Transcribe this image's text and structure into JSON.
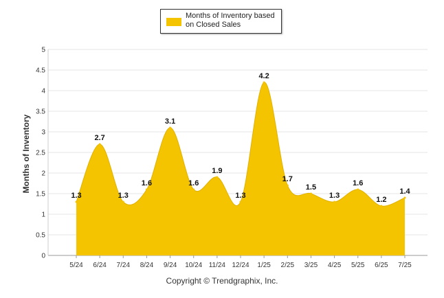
{
  "chart_data": {
    "type": "area",
    "categories": [
      "5/24",
      "6/24",
      "7/24",
      "8/24",
      "9/24",
      "10/24",
      "11/24",
      "12/24",
      "1/25",
      "2/25",
      "3/25",
      "4/25",
      "5/25",
      "6/25",
      "7/25"
    ],
    "series": [
      {
        "name": "Months of Inventory based on Closed Sales",
        "values": [
          1.3,
          2.7,
          1.3,
          1.6,
          3.1,
          1.6,
          1.9,
          1.3,
          4.2,
          1.7,
          1.5,
          1.3,
          1.6,
          1.2,
          1.4
        ]
      }
    ],
    "ylabel": "Months of Inventory",
    "ylim": [
      0,
      5
    ],
    "yticks": [
      "0",
      "0.5",
      "1",
      "1.5",
      "2",
      "2.5",
      "3",
      "3.5",
      "4",
      "4.5",
      "5"
    ],
    "grid": true,
    "legend_position": "top-center",
    "color": "#f5c400"
  },
  "footer": {
    "copyright": "Copyright © Trendgraphix, Inc."
  }
}
